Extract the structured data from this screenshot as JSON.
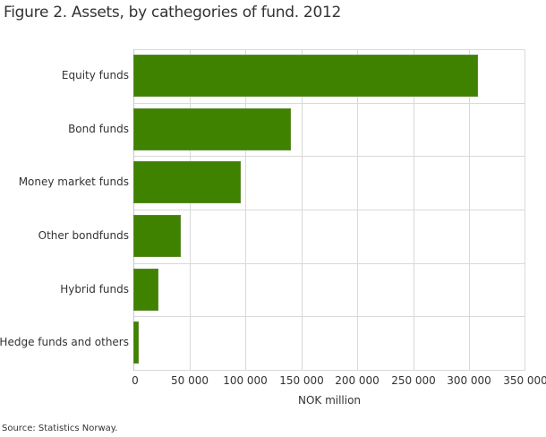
{
  "title": "Figure 2. Assets, by cathegories of fund. 2012",
  "source": "Source: Statistics Norway.",
  "colors": {
    "bar": "#3e8200",
    "grid": "#d9d9d9"
  },
  "chart_data": {
    "type": "bar",
    "orientation": "horizontal",
    "title": "Figure 2. Assets, by cathegories of fund. 2012",
    "categories": [
      "Equity funds",
      "Bond funds",
      "Money market funds",
      "Other bondfunds",
      "Hybrid funds",
      "Hedge funds and others"
    ],
    "values": [
      308000,
      141000,
      96000,
      42000,
      22000,
      5000
    ],
    "xlabel": "NOK million",
    "ylabel": "",
    "xlim": [
      0,
      350000
    ],
    "xticks": [
      "0",
      "50 000",
      "100 000",
      "150 000",
      "200 000",
      "250 000",
      "300 000",
      "350 000"
    ],
    "grid": true,
    "legend": null,
    "source": "Source: Statistics Norway."
  }
}
